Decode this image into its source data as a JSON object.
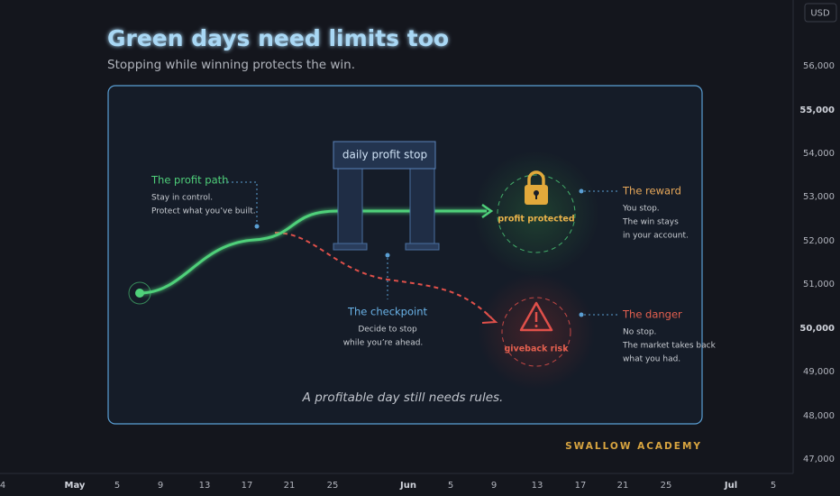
{
  "header": {
    "title": "Green days need limits too",
    "subtitle": "Stopping while winning protects the win."
  },
  "price_axis": {
    "currency": "USD",
    "labels": [
      "56,000",
      "55,000",
      "54,000",
      "53,000",
      "52,000",
      "51,000",
      "50,000",
      "49,000",
      "48,000",
      "47,000"
    ]
  },
  "time_axis": {
    "labels": [
      "4",
      "May",
      "5",
      "9",
      "13",
      "17",
      "21",
      "25",
      "Jun",
      "5",
      "9",
      "13",
      "17",
      "21",
      "25",
      "Jul",
      "5"
    ]
  },
  "diagram": {
    "gate_label": "daily profit stop",
    "profit_path": {
      "title": "The profit path",
      "lines": [
        "Stay in control.",
        "Protect what you’ve built."
      ]
    },
    "checkpoint": {
      "title": "The checkpoint",
      "lines": [
        "Decide to stop",
        "while you’re ahead."
      ]
    },
    "reward": {
      "badge": "profit protected",
      "title": "The reward",
      "lines": [
        "You stop.",
        "The win stays",
        "in your account."
      ]
    },
    "danger": {
      "badge": "giveback risk",
      "title": "The danger",
      "lines": [
        "No stop.",
        "The market takes back",
        "what you had."
      ]
    },
    "footer": "A profitable day still needs rules."
  },
  "brand": "SWALLOW ACADEMY"
}
